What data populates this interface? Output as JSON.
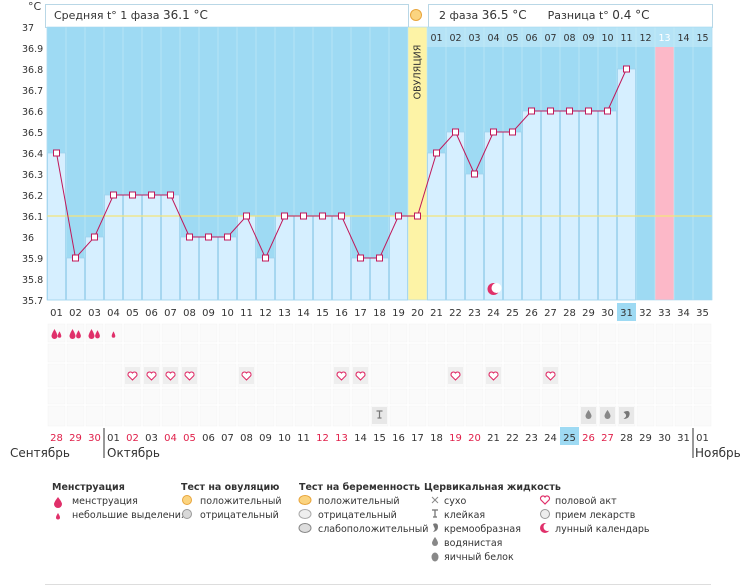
{
  "header": {
    "unit": "°C",
    "phase1_label": "Средняя t° 1 фаза",
    "phase1_value": "36.1 °C",
    "phase2_label": "2 фаза",
    "phase2_value": "36.5 °C",
    "diff_label": "Разница t°",
    "diff_value": "0.4 °C",
    "ovulation_label": "ОВУЛЯЦИЯ"
  },
  "colors": {
    "phase1_bg": "#9edaf3",
    "phase2_bg": "#9edaf3",
    "bar_fill": "#d6efff",
    "bar_stroke": "#9fd2ee",
    "line": "#c0185a",
    "ovulation_bg": "#fdf3a6",
    "highlight_day": "#fcb8c8",
    "coverline": "#f4e47a",
    "red_day": "#e0204a"
  },
  "chart_data": {
    "type": "line",
    "ylim": [
      35.7,
      37.0
    ],
    "y_ticks": [
      "35.7",
      "35.8",
      "35.9",
      "36",
      "36.1",
      "36.2",
      "36.3",
      "36.4",
      "36.5",
      "36.6",
      "36.7",
      "36.8",
      "36.9",
      "37"
    ],
    "coverline": 36.1,
    "cycle_days": [
      "01",
      "02",
      "03",
      "04",
      "05",
      "06",
      "07",
      "08",
      "09",
      "10",
      "11",
      "12",
      "13",
      "14",
      "15",
      "16",
      "17",
      "18",
      "19",
      "20",
      "21",
      "22",
      "23",
      "24",
      "25",
      "26",
      "27",
      "28",
      "29",
      "30",
      "31",
      "32",
      "33",
      "34",
      "35"
    ],
    "temperatures": [
      36.4,
      35.9,
      36.0,
      36.2,
      36.2,
      36.2,
      36.2,
      36.0,
      36.0,
      36.0,
      36.1,
      35.9,
      36.1,
      36.1,
      36.1,
      36.1,
      35.9,
      35.9,
      36.1,
      36.1,
      36.4,
      36.5,
      36.3,
      36.5,
      36.5,
      36.6,
      36.6,
      36.6,
      36.6,
      36.6,
      36.8,
      null,
      null,
      null,
      null
    ],
    "ovulation_day_index": 19,
    "post_ovulation_days": [
      "01",
      "02",
      "03",
      "04",
      "05",
      "06",
      "07",
      "08",
      "09",
      "10",
      "11",
      "12",
      "13",
      "14",
      "15"
    ],
    "highlighted_cycle_day": "31",
    "highlighted_post_day": "13",
    "dates": [
      "28",
      "29",
      "30",
      "01",
      "02",
      "03",
      "04",
      "05",
      "06",
      "07",
      "08",
      "09",
      "10",
      "11",
      "12",
      "13",
      "14",
      "15",
      "16",
      "17",
      "18",
      "19",
      "20",
      "21",
      "22",
      "23",
      "24",
      "25",
      "26",
      "27",
      "28",
      "29",
      "30",
      "31",
      "01"
    ],
    "red_date_indexes": [
      0,
      1,
      2,
      4,
      6,
      7,
      14,
      15,
      21,
      22,
      28,
      29
    ],
    "highlighted_date_index": 27,
    "months": [
      "Сентябрь",
      "Октябрь",
      "Ноябрь"
    ],
    "menstruation_days": [
      {
        "day": 0,
        "count": 1
      },
      {
        "day": 1,
        "count": 2
      },
      {
        "day": 2,
        "count": 2
      },
      {
        "day": 3,
        "count": 1,
        "small": true
      }
    ],
    "intercourse_days": [
      4,
      5,
      6,
      7,
      10,
      15,
      16,
      21,
      23,
      26
    ],
    "moon_day": 23,
    "mucus": [
      {
        "day": 17,
        "type": "sticky"
      },
      {
        "day": 28,
        "type": "watery"
      },
      {
        "day": 29,
        "type": "watery"
      },
      {
        "day": 30,
        "type": "creamy"
      }
    ]
  },
  "legend": {
    "menstruation": {
      "title": "Менструация",
      "items": [
        "менструация",
        "небольшие выделения"
      ]
    },
    "ovulation_test": {
      "title": "Тест на овуляцию",
      "items": [
        "положительный",
        "отрицательный"
      ]
    },
    "pregnancy_test": {
      "title": "Тест на беременность",
      "items": [
        "положительный",
        "отрицательный",
        "слабоположительный"
      ]
    },
    "cervical": {
      "title": "Цервикальная жидкость",
      "items": [
        "сухо",
        "клейкая",
        "кремообразная",
        "водянистая",
        "яичный белок"
      ]
    },
    "other": {
      "items": [
        "половой акт",
        "прием лекарств",
        "лунный календарь"
      ]
    }
  }
}
